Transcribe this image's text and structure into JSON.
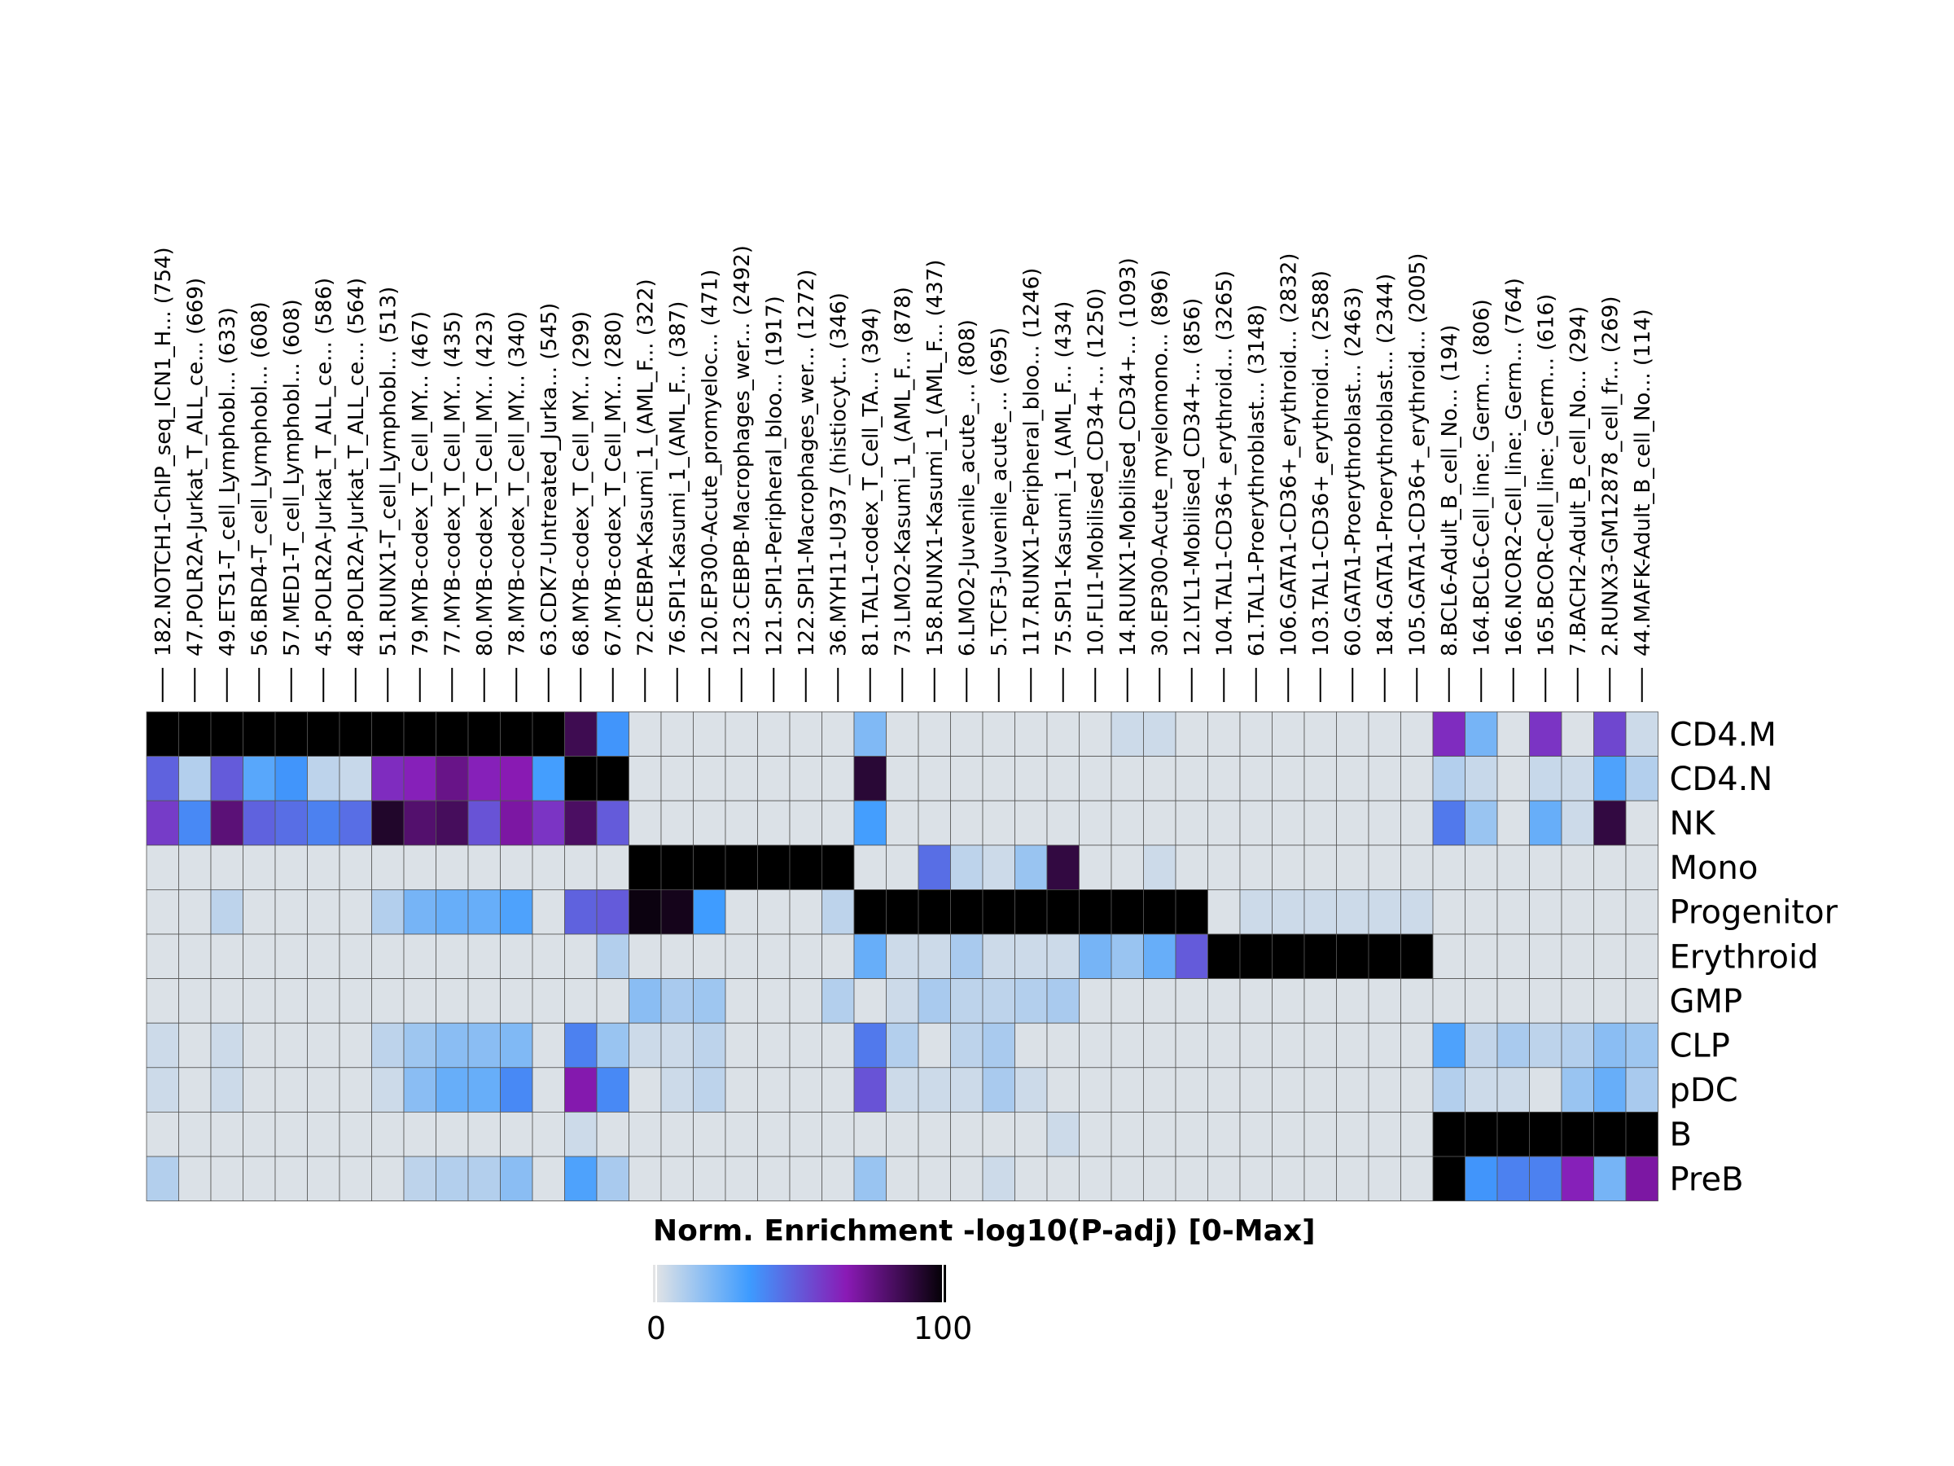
{
  "chart_data": {
    "type": "heatmap",
    "title": "",
    "xlabel": "",
    "ylabel": "",
    "columns": [
      "182.NOTCH1-ChIP_seq_ICN1_H... (754)",
      "47.POLR2A-Jurkat_T_ALL_ce... (669)",
      "49.ETS1-T_cell_Lymphobl... (633)",
      "56.BRD4-T_cell_Lymphobl... (608)",
      "57.MED1-T_cell_Lymphobl... (608)",
      "45.POLR2A-Jurkat_T_ALL_ce... (586)",
      "48.POLR2A-Jurkat_T_ALL_ce... (564)",
      "51.RUNX1-T_cell_Lymphobl... (513)",
      "79.MYB-codex_T_Cell_MY... (467)",
      "77.MYB-codex_T_Cell_MY... (435)",
      "80.MYB-codex_T_Cell_MY... (423)",
      "78.MYB-codex_T_Cell_MY... (340)",
      "63.CDK7-Untreated_Jurka... (545)",
      "68.MYB-codex_T_Cell_MY... (299)",
      "67.MYB-codex_T_Cell_MY... (280)",
      "72.CEBPA-Kasumi_1_(AML_F... (322)",
      "76.SPI1-Kasumi_1_(AML_F... (387)",
      "120.EP300-Acute_promyeloc... (471)",
      "123.CEBPB-Macrophages_wer... (2492)",
      "121.SPI1-Peripheral_bloo... (1917)",
      "122.SPI1-Macrophages_wer... (1272)",
      "36.MYH11-U937_(histiocyt... (346)",
      "81.TAL1-codex_T_Cell_TA... (394)",
      "73.LMO2-Kasumi_1_(AML_F... (878)",
      "158.RUNX1-Kasumi_1_(AML_F... (437)",
      "6.LMO2-Juvenile_acute_... (808)",
      "5.TCF3-Juvenile_acute_... (695)",
      "117.RUNX1-Peripheral_bloo... (1246)",
      "75.SPI1-Kasumi_1_(AML_F... (434)",
      "10.FLI1-Mobilised_CD34+... (1250)",
      "14.RUNX1-Mobilised_CD34+... (1093)",
      "30.EP300-Acute_myelomono... (896)",
      "12.LYL1-Mobilised_CD34+... (856)",
      "104.TAL1-CD36+_erythroid... (3265)",
      "61.TAL1-Proerythroblast... (3148)",
      "106.GATA1-CD36+_erythroid... (2832)",
      "103.TAL1-CD36+_erythroid... (2588)",
      "60.GATA1-Proerythroblast... (2463)",
      "184.GATA1-Proerythroblast... (2344)",
      "105.GATA1-CD36+_erythroid... (2005)",
      "8.BCL6-Adult_B_cell_No... (194)",
      "164.BCL6-Cell_line:_Germ... (806)",
      "166.NCOR2-Cell_line:_Germ... (764)",
      "165.BCOR-Cell_line:_Germ... (616)",
      "7.BACH2-Adult_B_cell_No... (294)",
      "2.RUNX3-GM12878_cell_fr... (269)",
      "44.MAFK-Adult_B_cell_No... (114)"
    ],
    "rows": [
      "CD4.M",
      "CD4.N",
      "NK",
      "Mono",
      "Progenitor",
      "Erythroid",
      "GMP",
      "CLP",
      "pDC",
      "B",
      "PreB"
    ],
    "values": [
      [
        100,
        100,
        100,
        100,
        100,
        100,
        100,
        100,
        100,
        100,
        100,
        100,
        100,
        85,
        35,
        2,
        2,
        2,
        2,
        2,
        2,
        2,
        20,
        2,
        2,
        2,
        2,
        2,
        2,
        2,
        5,
        5,
        2,
        2,
        2,
        2,
        2,
        2,
        2,
        2,
        62,
        22,
        2,
        60,
        2,
        55,
        5
      ],
      [
        48,
        10,
        50,
        28,
        35,
        8,
        6,
        62,
        65,
        75,
        65,
        67,
        32,
        100,
        100,
        2,
        2,
        2,
        2,
        2,
        2,
        2,
        90,
        2,
        2,
        2,
        2,
        2,
        2,
        2,
        2,
        2,
        2,
        2,
        2,
        2,
        2,
        2,
        2,
        2,
        10,
        6,
        2,
        6,
        5,
        30,
        10
      ],
      [
        58,
        38,
        78,
        48,
        45,
        40,
        45,
        92,
        80,
        83,
        52,
        70,
        60,
        82,
        50,
        2,
        2,
        2,
        2,
        2,
        2,
        2,
        32,
        2,
        2,
        2,
        2,
        2,
        2,
        2,
        2,
        2,
        2,
        2,
        2,
        2,
        2,
        2,
        2,
        2,
        42,
        15,
        2,
        25,
        5,
        88,
        2
      ],
      [
        2,
        2,
        2,
        2,
        2,
        2,
        2,
        2,
        2,
        2,
        2,
        2,
        2,
        2,
        2,
        100,
        100,
        100,
        100,
        100,
        100,
        100,
        2,
        2,
        45,
        8,
        5,
        15,
        88,
        2,
        2,
        5,
        2,
        2,
        2,
        2,
        2,
        2,
        2,
        2,
        2,
        2,
        2,
        2,
        2,
        2,
        2
      ],
      [
        2,
        2,
        8,
        2,
        2,
        2,
        2,
        10,
        22,
        25,
        25,
        30,
        2,
        48,
        50,
        97,
        95,
        33,
        2,
        2,
        2,
        8,
        100,
        100,
        100,
        100,
        100,
        100,
        100,
        100,
        100,
        100,
        100,
        2,
        5,
        5,
        5,
        5,
        5,
        5,
        2,
        2,
        2,
        2,
        2,
        2,
        2
      ],
      [
        2,
        2,
        2,
        2,
        2,
        2,
        2,
        2,
        2,
        2,
        2,
        2,
        2,
        2,
        10,
        2,
        2,
        2,
        2,
        2,
        2,
        2,
        25,
        5,
        5,
        12,
        5,
        5,
        5,
        22,
        15,
        25,
        50,
        100,
        100,
        100,
        100,
        100,
        100,
        100,
        2,
        2,
        2,
        2,
        2,
        2,
        2
      ],
      [
        2,
        2,
        2,
        2,
        2,
        2,
        2,
        2,
        2,
        2,
        2,
        2,
        2,
        2,
        2,
        18,
        12,
        14,
        2,
        2,
        2,
        10,
        2,
        5,
        12,
        8,
        8,
        10,
        12,
        2,
        2,
        2,
        2,
        2,
        2,
        2,
        2,
        2,
        2,
        2,
        2,
        2,
        2,
        2,
        2,
        2,
        2
      ],
      [
        5,
        2,
        5,
        2,
        2,
        2,
        2,
        8,
        14,
        18,
        18,
        20,
        2,
        40,
        15,
        5,
        5,
        8,
        2,
        2,
        2,
        2,
        42,
        10,
        2,
        8,
        12,
        2,
        2,
        2,
        2,
        2,
        2,
        2,
        2,
        2,
        2,
        2,
        2,
        2,
        30,
        7,
        12,
        8,
        10,
        18,
        14
      ],
      [
        5,
        2,
        5,
        2,
        2,
        2,
        2,
        5,
        18,
        25,
        25,
        38,
        2,
        68,
        38,
        2,
        5,
        8,
        2,
        2,
        2,
        2,
        52,
        5,
        5,
        5,
        12,
        5,
        2,
        2,
        2,
        2,
        2,
        2,
        2,
        2,
        2,
        2,
        2,
        2,
        10,
        5,
        5,
        2,
        15,
        25,
        12
      ],
      [
        2,
        2,
        2,
        2,
        2,
        2,
        2,
        2,
        2,
        2,
        2,
        2,
        2,
        5,
        2,
        2,
        2,
        2,
        2,
        2,
        2,
        2,
        2,
        2,
        2,
        2,
        2,
        2,
        5,
        2,
        2,
        2,
        2,
        2,
        2,
        2,
        2,
        2,
        2,
        2,
        100,
        100,
        100,
        100,
        100,
        100,
        100
      ],
      [
        10,
        2,
        2,
        2,
        2,
        2,
        2,
        2,
        8,
        10,
        10,
        18,
        2,
        30,
        12,
        2,
        2,
        2,
        2,
        2,
        2,
        2,
        15,
        2,
        2,
        2,
        5,
        2,
        2,
        2,
        2,
        2,
        2,
        2,
        2,
        2,
        2,
        2,
        2,
        2,
        100,
        35,
        40,
        40,
        65,
        22,
        70
      ]
    ],
    "colorbar": {
      "title": "Norm. Enrichment -log10(P-adj) [0-Max]",
      "min_label": "0",
      "max_label": "100",
      "range": [
        0,
        100
      ]
    },
    "colorscale": [
      "#e5e5e5",
      "#3d9bff",
      "#8a1ab5",
      "#000000"
    ]
  }
}
